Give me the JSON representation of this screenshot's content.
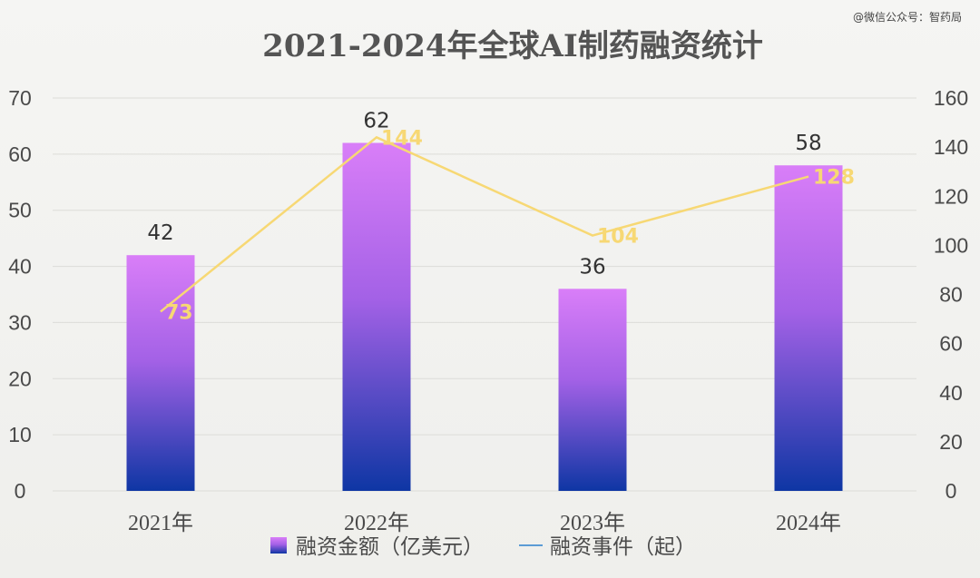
{
  "watermark": "@微信公众号：智药局",
  "chart_data": {
    "type": "bar",
    "title": "2021-2024年全球AI制药融资统计",
    "categories": [
      "2021年",
      "2022年",
      "2023年",
      "2024年"
    ],
    "series": [
      {
        "name": "融资金额（亿美元）",
        "type": "bar",
        "axis": "left",
        "values": [
          42,
          62,
          36,
          58
        ],
        "color_top": "#d97ef8",
        "color_bottom": "#0e36a4"
      },
      {
        "name": "融资事件（起）",
        "type": "line",
        "axis": "right",
        "values": [
          73,
          144,
          104,
          128
        ],
        "color": "#f7d874"
      }
    ],
    "ylim_left": [
      0,
      70
    ],
    "yticks_left": [
      "0",
      "10",
      "20",
      "30",
      "40",
      "50",
      "60",
      "70"
    ],
    "ylim_right": [
      0,
      160
    ],
    "yticks_right": [
      "0",
      "20",
      "40",
      "60",
      "80",
      "100",
      "120",
      "140",
      "160"
    ],
    "grid": true,
    "legend": "bottom"
  }
}
